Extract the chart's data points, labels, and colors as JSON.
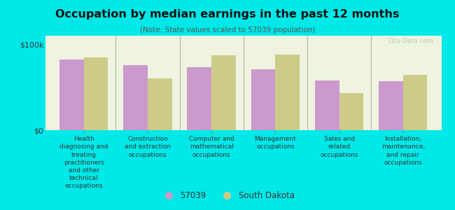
{
  "title": "Occupation by median earnings in the past 12 months",
  "subtitle": "(Note: State values scaled to 57039 population)",
  "background_color": "#00e8e8",
  "plot_bg_color": "#eef4e0",
  "categories": [
    "Health\ndiagnosing and\ntreating\npractitioners\nand other\ntechnical\noccupations",
    "Construction\nand extraction\noccupations",
    "Computer and\nmathematical\noccupations",
    "Management\noccupations",
    "Sales and\nrelated\noccupations",
    "Installation,\nmaintenance,\nand repair\noccupations"
  ],
  "values_57039": [
    82000,
    76000,
    73000,
    71000,
    58000,
    57000
  ],
  "values_sd": [
    85000,
    60000,
    87000,
    88000,
    43000,
    64000
  ],
  "color_57039": "#cc99cc",
  "color_sd": "#cccc88",
  "ytick_labels": [
    "$0",
    "$100k"
  ],
  "ytick_values": [
    0,
    100000
  ],
  "ylim": [
    0,
    110000
  ],
  "legend_labels": [
    "57039",
    "South Dakota"
  ],
  "watermark": "City-Data.com"
}
